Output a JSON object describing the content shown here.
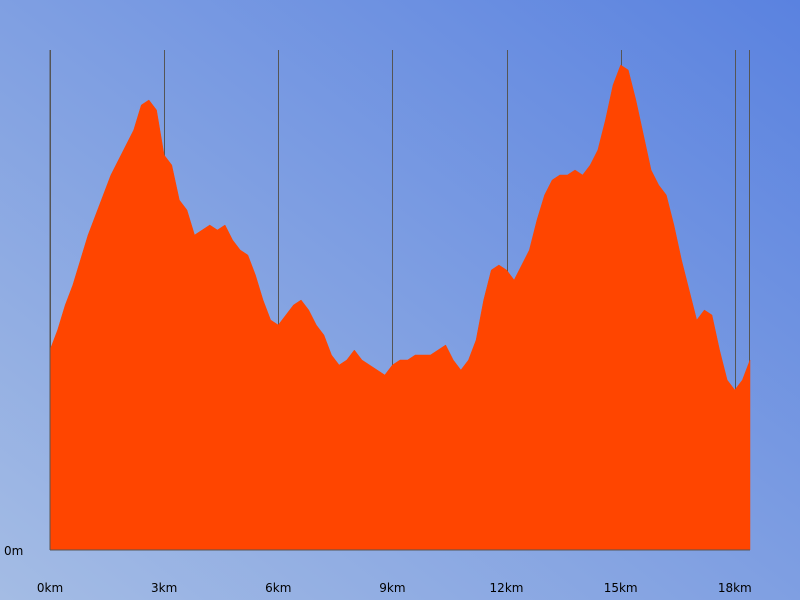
{
  "chart_data": {
    "type": "area",
    "title": "",
    "xlabel": "",
    "ylabel": "",
    "x_unit": "km",
    "xlim": [
      0,
      18.4
    ],
    "ylim": [
      0,
      100
    ],
    "x_ticks": [
      0,
      3,
      6,
      9,
      12,
      15,
      18
    ],
    "x_tick_labels": [
      "0km",
      "3km",
      "6km",
      "9km",
      "12km",
      "15km",
      "18km"
    ],
    "y_tick_labels": [
      "0m"
    ],
    "grid": "vertical",
    "legend": "none",
    "series": [
      {
        "x": [
          0,
          0.2,
          0.4,
          0.6,
          0.8,
          1.0,
          1.2,
          1.4,
          1.6,
          1.8,
          2.0,
          2.2,
          2.4,
          2.6,
          2.8,
          3.0,
          3.2,
          3.4,
          3.6,
          3.8,
          4.0,
          4.2,
          4.4,
          4.6,
          4.8,
          5.0,
          5.2,
          5.4,
          5.6,
          5.8,
          6.0,
          6.2,
          6.4,
          6.6,
          6.8,
          7.0,
          7.2,
          7.4,
          7.6,
          7.8,
          8.0,
          8.2,
          8.4,
          8.6,
          8.8,
          9.0,
          9.2,
          9.4,
          9.6,
          9.8,
          10.0,
          10.2,
          10.4,
          10.6,
          10.8,
          11.0,
          11.2,
          11.4,
          11.6,
          11.8,
          12.0,
          12.2,
          12.4,
          12.6,
          12.8,
          13.0,
          13.2,
          13.4,
          13.6,
          13.8,
          14.0,
          14.2,
          14.4,
          14.6,
          14.8,
          15.0,
          15.2,
          15.4,
          15.6,
          15.8,
          16.0,
          16.2,
          16.4,
          16.6,
          16.8,
          17.0,
          17.2,
          17.4,
          17.6,
          17.8,
          18.0,
          18.2,
          18.4
        ],
        "values": [
          40,
          44,
          49,
          53,
          58,
          63,
          67,
          71,
          75,
          78,
          81,
          84,
          89,
          90,
          88,
          79,
          77,
          70,
          68,
          63,
          64,
          65,
          64,
          65,
          62,
          60,
          59,
          55,
          50,
          46,
          45,
          47,
          49,
          50,
          48,
          45,
          43,
          39,
          37,
          38,
          40,
          38,
          37,
          36,
          35,
          37,
          38,
          38,
          39,
          39,
          39,
          40,
          41,
          38,
          36,
          38,
          42,
          50,
          56,
          57,
          56,
          54,
          57,
          60,
          66,
          71,
          74,
          75,
          75,
          76,
          75,
          77,
          80,
          86,
          93,
          97,
          96,
          90,
          83,
          76,
          73,
          71,
          65,
          58,
          52,
          46,
          48,
          47,
          40,
          34,
          32,
          34,
          38
        ]
      }
    ]
  }
}
